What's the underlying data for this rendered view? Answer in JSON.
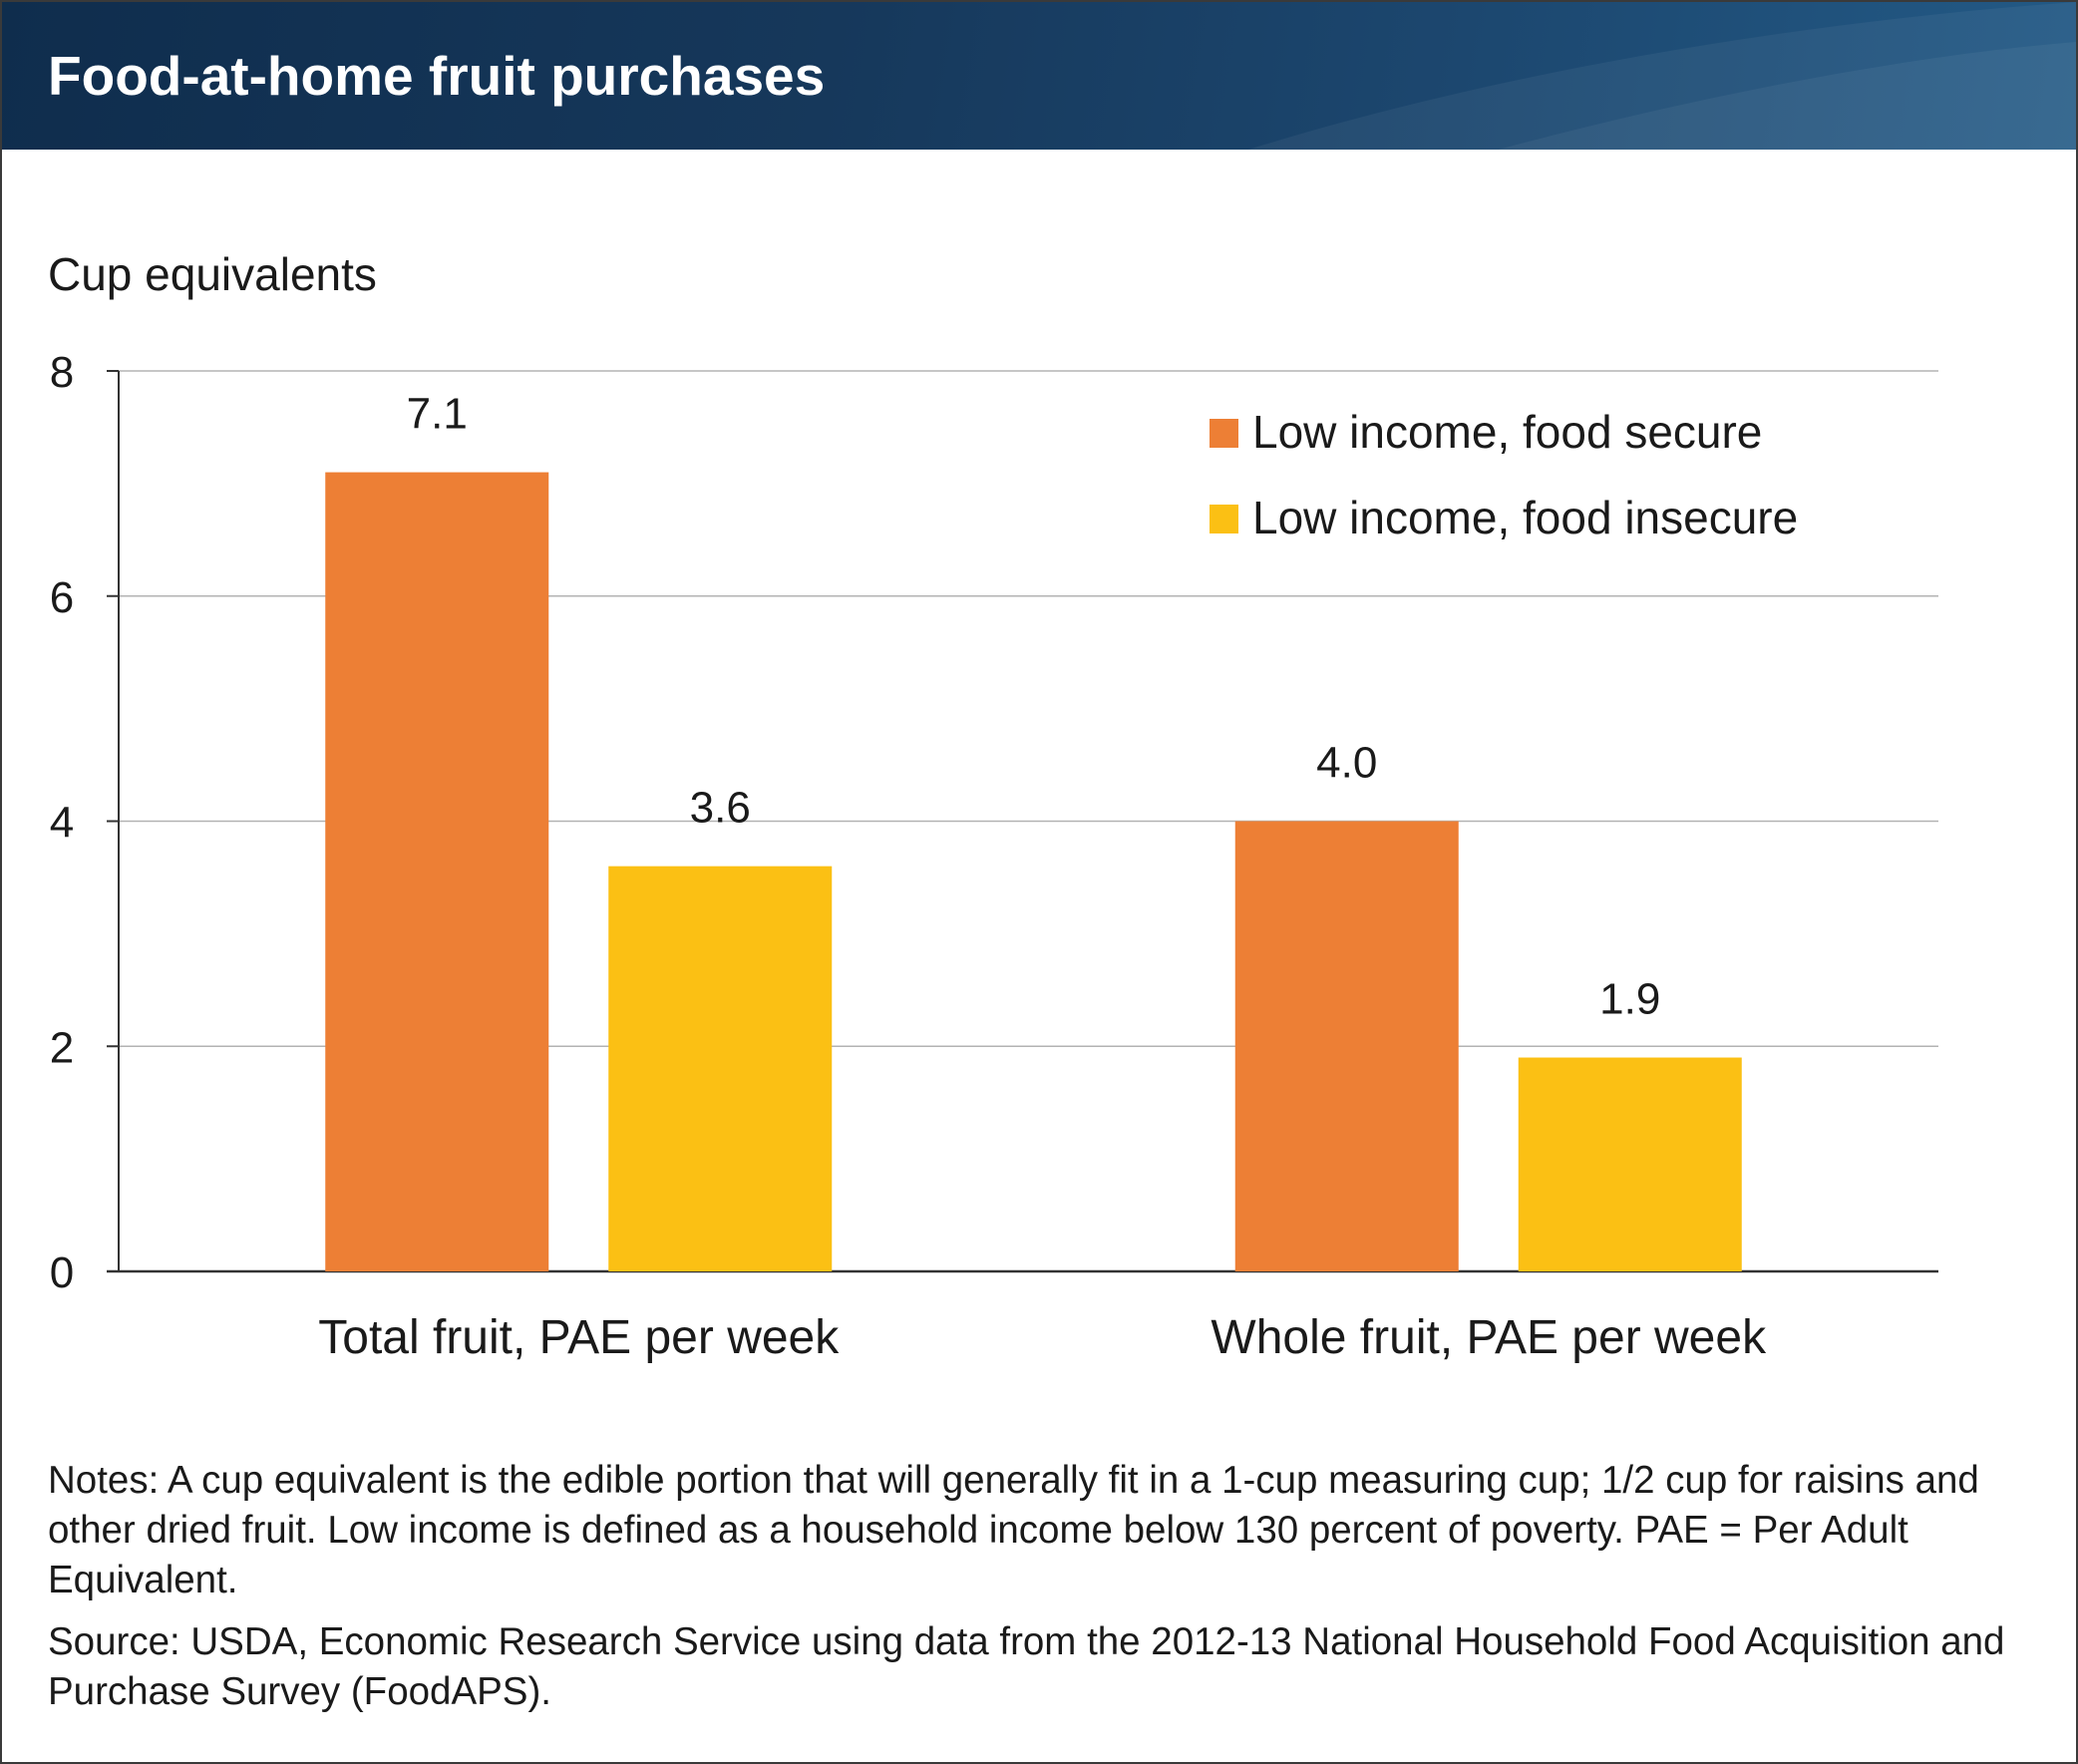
{
  "title": "Food-at-home fruit purchases",
  "chart_data": {
    "type": "bar",
    "ylabel": "Cup equivalents",
    "ylim": [
      0,
      8
    ],
    "yticks": [
      "0",
      "2",
      "4",
      "6",
      "8"
    ],
    "categories": [
      "Total fruit, PAE per week",
      "Whole fruit, PAE per week"
    ],
    "series": [
      {
        "name": "Low income, food secure",
        "color": "#ed7f35",
        "values": [
          7.1,
          4.0
        ],
        "labels": [
          "7.1",
          "4.0"
        ]
      },
      {
        "name": "Low income, food insecure",
        "color": "#fbc014",
        "values": [
          3.6,
          1.9
        ],
        "labels": [
          "3.6",
          "1.9"
        ]
      }
    ],
    "grid": true,
    "legend_position": "top-right"
  },
  "notes": "Notes: A cup equivalent is the edible portion that will generally fit in a 1-cup measuring cup; 1/2 cup for raisins and other dried fruit. Low income is defined as a household income below 130 percent of poverty. PAE = Per Adult Equivalent.",
  "source": "Source: USDA, Economic Research Service using data from the 2012-13 National Household Food Acquisition and Purchase Survey (FoodAPS)."
}
